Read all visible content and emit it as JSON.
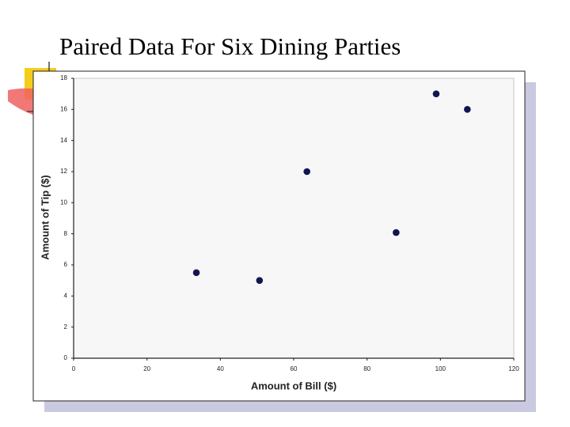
{
  "chart_data": {
    "type": "scatter",
    "title": "Paired Data For Six Dining Parties",
    "xlabel": "Amount of Bill ($)",
    "ylabel": "Amount of Tip ($)",
    "x": [
      33.46,
      50.68,
      87.92,
      98.84,
      63.6,
      107.34
    ],
    "values": [
      5.5,
      5.0,
      8.08,
      17.0,
      12.0,
      16.0
    ],
    "color": "#141452",
    "xlim": [
      0,
      120
    ],
    "xticks": [
      0,
      20,
      40,
      60,
      80,
      100,
      120
    ],
    "ylim": [
      0,
      18
    ],
    "yticks": [
      0,
      2,
      4,
      6,
      8,
      10,
      12,
      14,
      16,
      18
    ],
    "grid": false
  }
}
